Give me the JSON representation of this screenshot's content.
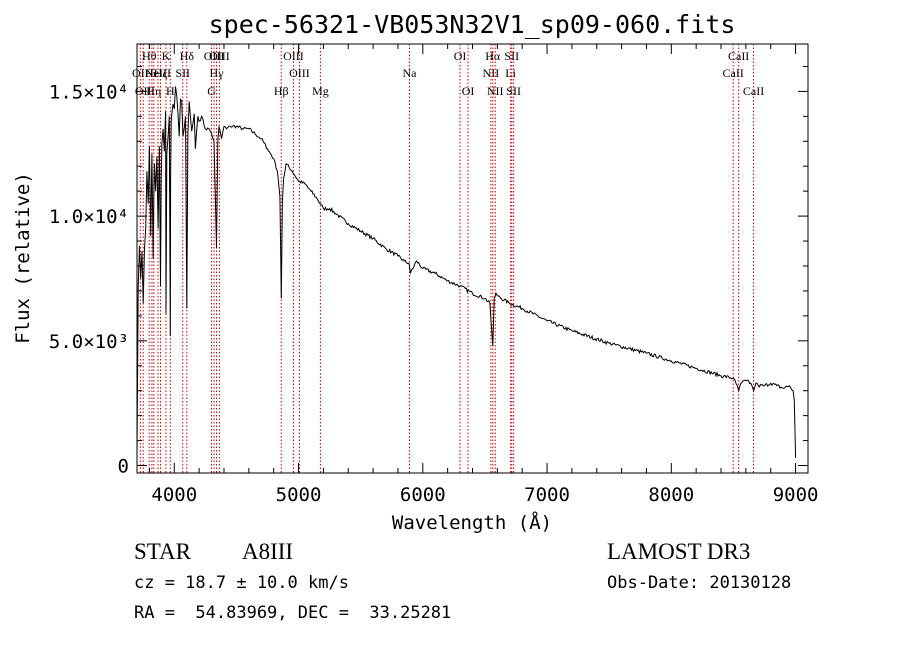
{
  "chart_data": {
    "type": "line",
    "title": "spec-56321-VB053N32V1_sp09-060.fits",
    "xlabel": "Wavelength (Å)",
    "ylabel": "Flux (relative)",
    "xlim": [
      3700,
      9100
    ],
    "ylim": [
      -300,
      16900
    ],
    "x_ticks": [
      4000,
      5000,
      6000,
      7000,
      8000,
      9000
    ],
    "x_tick_labels": [
      "4000",
      "5000",
      "6000",
      "7000",
      "8000",
      "9000"
    ],
    "y_ticks": [
      0,
      5000,
      10000,
      15000
    ],
    "y_tick_labels": [
      "0",
      "5.0×10³",
      "1.0×10⁴",
      "1.5×10⁴"
    ],
    "series": [
      {
        "name": "spectrum",
        "x": [
          3700,
          3710,
          3720,
          3730,
          3740,
          3750,
          3760,
          3770,
          3780,
          3790,
          3800,
          3810,
          3820,
          3830,
          3835,
          3840,
          3850,
          3860,
          3870,
          3880,
          3889,
          3895,
          3900,
          3910,
          3920,
          3930,
          3933,
          3940,
          3950,
          3960,
          3968,
          3970,
          3975,
          3980,
          3990,
          4000,
          4010,
          4020,
          4030,
          4040,
          4050,
          4060,
          4070,
          4080,
          4090,
          4101,
          4110,
          4120,
          4130,
          4140,
          4150,
          4160,
          4170,
          4180,
          4190,
          4200,
          4220,
          4250,
          4280,
          4300,
          4320,
          4340,
          4350,
          4360,
          4380,
          4400,
          4420,
          4450,
          4500,
          4550,
          4600,
          4650,
          4700,
          4750,
          4800,
          4830,
          4850,
          4861,
          4870,
          4880,
          4900,
          4950,
          5000,
          5050,
          5100,
          5150,
          5200,
          5250,
          5300,
          5400,
          5500,
          5600,
          5700,
          5800,
          5850,
          5890,
          5900,
          5950,
          6000,
          6100,
          6200,
          6300,
          6400,
          6500,
          6540,
          6563,
          6575,
          6590,
          6600,
          6700,
          6800,
          7000,
          7200,
          7500,
          7800,
          8000,
          8200,
          8400,
          8500,
          8520,
          8542,
          8560,
          8600,
          8640,
          8662,
          8680,
          8700,
          8750,
          8800,
          8850,
          8900,
          8950,
          8980,
          8990,
          9000
        ],
        "y": [
          300,
          7200,
          8800,
          7500,
          8600,
          6500,
          8700,
          9500,
          11800,
          10500,
          12800,
          9200,
          12500,
          8300,
          10700,
          12100,
          11000,
          12400,
          9500,
          12800,
          7200,
          11500,
          12900,
          13500,
          12600,
          14200,
          6100,
          12500,
          13200,
          14000,
          5200,
          11500,
          13800,
          14100,
          14500,
          14300,
          15200,
          14800,
          14100,
          13200,
          14700,
          14600,
          13200,
          13500,
          14000,
          6300,
          13300,
          14600,
          14000,
          13400,
          13700,
          14100,
          12700,
          13400,
          14000,
          13800,
          14000,
          13500,
          13500,
          13300,
          13000,
          8700,
          13000,
          13600,
          13100,
          13600,
          13500,
          13600,
          13600,
          13500,
          13500,
          13300,
          13100,
          12700,
          12300,
          11800,
          10800,
          6700,
          10600,
          11500,
          12100,
          11800,
          11400,
          11300,
          11000,
          10700,
          10300,
          10300,
          10100,
          9700,
          9400,
          9100,
          8700,
          8400,
          8200,
          8100,
          7700,
          8200,
          7900,
          7700,
          7400,
          7200,
          6900,
          6700,
          6500,
          4800,
          6700,
          6900,
          6800,
          6500,
          6300,
          5800,
          5400,
          4900,
          4500,
          4200,
          3900,
          3600,
          3500,
          3300,
          3000,
          3300,
          3400,
          3300,
          3000,
          3300,
          3200,
          3200,
          3300,
          3200,
          3100,
          3200,
          3000,
          2600,
          300
        ]
      }
    ],
    "line_markers": [
      {
        "x": 3727,
        "label": "OII",
        "row": 1
      },
      {
        "x": 3750,
        "label": "OII",
        "row": 2
      },
      {
        "x": 3798,
        "label": "Hθ",
        "row": 0
      },
      {
        "x": 3820,
        "label": "He",
        "row": 1
      },
      {
        "x": 3835,
        "label": "Hη",
        "row": 2
      },
      {
        "x": 3869,
        "label": "NeIII",
        "row": 1
      },
      {
        "x": 3889,
        "label": "Hζ",
        "row": 1
      },
      {
        "x": 3933,
        "label": "K",
        "row": 0
      },
      {
        "x": 3968,
        "label": "H",
        "row": 2
      },
      {
        "x": 4068,
        "label": "SII",
        "row": 1
      },
      {
        "x": 4101,
        "label": "Hδ",
        "row": 0
      },
      {
        "x": 4300,
        "label": "G",
        "row": 2
      },
      {
        "x": 4320,
        "label": "OIII",
        "row": 0
      },
      {
        "x": 4340,
        "label": "Hγ",
        "row": 1
      },
      {
        "x": 4363,
        "label": "OIII",
        "row": 0
      },
      {
        "x": 4861,
        "label": "Hβ",
        "row": 2
      },
      {
        "x": 4959,
        "label": "OIII",
        "row": 0
      },
      {
        "x": 5007,
        "label": "OIII",
        "row": 1
      },
      {
        "x": 5176,
        "label": "Mg",
        "row": 2
      },
      {
        "x": 5893,
        "label": "Na",
        "row": 1
      },
      {
        "x": 6300,
        "label": "OI",
        "row": 0
      },
      {
        "x": 6364,
        "label": "OI",
        "row": 2
      },
      {
        "x": 6548,
        "label": "NII",
        "row": 1
      },
      {
        "x": 6563,
        "label": "Hα",
        "row": 0
      },
      {
        "x": 6583,
        "label": "NII",
        "row": 2
      },
      {
        "x": 6707,
        "label": "Li",
        "row": 1
      },
      {
        "x": 6716,
        "label": "SII",
        "row": 0
      },
      {
        "x": 6731,
        "label": "SII",
        "row": 2
      },
      {
        "x": 8498,
        "label": "CaII",
        "row": 1
      },
      {
        "x": 8542,
        "label": "CaII",
        "row": 0
      },
      {
        "x": 8662,
        "label": "CaII",
        "row": 2
      }
    ]
  },
  "info": {
    "class_label": "STAR",
    "subclass": "A8III",
    "cz_text": "cz = 18.7 ± 10.0 km/s",
    "radec_text": "RA =  54.83969, DEC =  33.25281",
    "survey": "LAMOST DR3",
    "obs_date": "Obs-Date: 20130128"
  }
}
